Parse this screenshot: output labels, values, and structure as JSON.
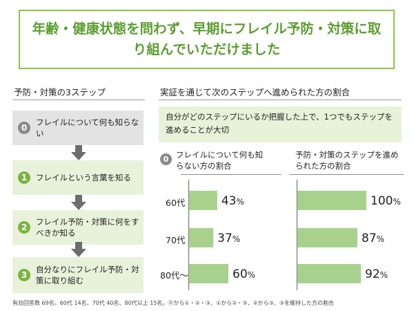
{
  "title": "年齢・健康状態を問わず、早期にフレイル予防・対策に取り組んでいただけました",
  "left_heading": "予防・対策の3ステップ",
  "right_heading": "実証を通じて次のステップへ進められた方の割合",
  "steps": [
    {
      "num": "0",
      "label": "フレイルについて何も知らない",
      "style": "gray"
    },
    {
      "num": "1",
      "label": "フレイルという言葉を知る",
      "style": "green"
    },
    {
      "num": "2",
      "label": "フレイル予防・対策に何をすべきか知る",
      "style": "green"
    },
    {
      "num": "3",
      "label": "自分なりにフレイル予防・対策に取り組む",
      "style": "green"
    }
  ],
  "callout": "自分がどのステップにいるか把握した上で、1つでもステップを進めることが大切",
  "panel_left_title_num": "0",
  "panel_left_title": "フレイルについて何も知らない方の割合",
  "panel_right_title": "予防・対策のステップを進められた方の割合",
  "footnote": "有効回答数 69名。60代 14名、70代 40名、80代以上 15名。⓪から①・②・③、①から②・③、②から③、③を維持した方の割合",
  "colors": {
    "accent": "#7cb342",
    "bar": "#a9d18e",
    "title": "#5a9e2f",
    "border": "#8cc63f"
  },
  "chart_data": [
    {
      "type": "bar",
      "orientation": "horizontal",
      "title": "フレイルについて何も知らない方の割合",
      "categories": [
        "60代",
        "70代",
        "80代〜"
      ],
      "values": [
        43,
        37,
        60
      ],
      "unit": "%",
      "xlim": [
        0,
        100
      ]
    },
    {
      "type": "bar",
      "orientation": "horizontal",
      "title": "予防・対策のステップを進められた方の割合",
      "categories": [
        "60代",
        "70代",
        "80代〜"
      ],
      "values": [
        100,
        87,
        92
      ],
      "unit": "%",
      "xlim": [
        0,
        100
      ]
    }
  ]
}
